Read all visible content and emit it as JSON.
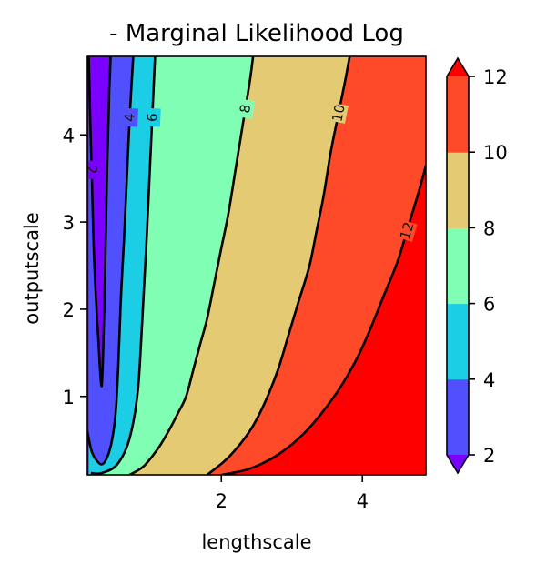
{
  "chart_data": {
    "type": "contour",
    "title": "- Marginal Likelihood Log",
    "xlabel": "lengthscale",
    "ylabel": "outputscale",
    "xlim": [
      0.1,
      4.9
    ],
    "ylim": [
      0.1,
      4.9
    ],
    "x_ticks": [
      2,
      4
    ],
    "y_ticks": [
      1,
      2,
      3,
      4
    ],
    "levels": [
      2,
      4,
      6,
      8,
      10,
      12
    ],
    "contour_labels": [
      "2",
      "4",
      "6",
      "8",
      "10",
      "12"
    ],
    "band_colors": [
      "#7a00ff",
      "#5050ff",
      "#1ccde6",
      "#80ffb4",
      "#e4cb73",
      "#ff4a2a",
      "#ff0000"
    ],
    "line_color": "#000000",
    "colorbar": {
      "ticks": [
        2,
        4,
        6,
        8,
        10,
        12
      ],
      "extend": "both",
      "under_color": "#7a00ff",
      "over_color": "#ff0000",
      "band_colors": [
        "#5050ff",
        "#1ccde6",
        "#80ffb4",
        "#e4cb73",
        "#ff4a2a"
      ]
    },
    "contours": [
      {
        "level": 2,
        "x": [
          0.12,
          0.14,
          0.16,
          0.18,
          0.2,
          0.23,
          0.26,
          0.28,
          0.3,
          0.31,
          0.32,
          0.33,
          0.34,
          0.35,
          0.36,
          0.37,
          0.38,
          0.39,
          0.4,
          0.41,
          0.42,
          0.43
        ],
        "y": [
          4.9,
          4.2,
          3.6,
          3.0,
          2.5,
          2.0,
          1.6,
          1.3,
          1.12,
          1.2,
          1.4,
          1.7,
          2.0,
          2.4,
          2.8,
          3.2,
          3.6,
          3.9,
          4.2,
          4.5,
          4.7,
          4.9
        ]
      },
      {
        "level": 4,
        "x": [
          0.1,
          0.15,
          0.2,
          0.3,
          0.38,
          0.45,
          0.5,
          0.53,
          0.55,
          0.58,
          0.62,
          0.66,
          0.7,
          0.75
        ],
        "y": [
          0.6,
          0.4,
          0.3,
          0.22,
          0.3,
          0.5,
          0.8,
          1.2,
          1.6,
          2.2,
          2.8,
          3.5,
          4.2,
          4.9
        ]
      },
      {
        "level": 6,
        "x": [
          0.15,
          0.3,
          0.5,
          0.65,
          0.75,
          0.82,
          0.86,
          0.9,
          0.94,
          0.98,
          1.02,
          1.06
        ],
        "y": [
          0.12,
          0.12,
          0.2,
          0.4,
          0.7,
          1.1,
          1.6,
          2.2,
          2.8,
          3.5,
          4.2,
          4.9
        ]
      },
      {
        "level": 8,
        "x": [
          0.7,
          0.9,
          1.1,
          1.25,
          1.38,
          1.5,
          1.6,
          1.7,
          1.8,
          1.9,
          2.0,
          2.1,
          2.2,
          2.3,
          2.4,
          2.45
        ],
        "y": [
          0.1,
          0.2,
          0.4,
          0.6,
          0.8,
          1.0,
          1.3,
          1.6,
          1.9,
          2.3,
          2.7,
          3.1,
          3.6,
          4.1,
          4.6,
          4.9
        ]
      },
      {
        "level": 10,
        "x": [
          1.8,
          2.1,
          2.4,
          2.6,
          2.8,
          2.95,
          3.1,
          3.25,
          3.35,
          3.45,
          3.55,
          3.65,
          3.75,
          3.82
        ],
        "y": [
          0.1,
          0.3,
          0.6,
          0.9,
          1.3,
          1.7,
          2.1,
          2.5,
          2.9,
          3.3,
          3.8,
          4.2,
          4.6,
          4.9
        ]
      },
      {
        "level": 12,
        "x": [
          2.0,
          2.4,
          2.8,
          3.2,
          3.6,
          3.9,
          4.1,
          4.3,
          4.5,
          4.65,
          4.8,
          4.9
        ],
        "y": [
          0.1,
          0.17,
          0.33,
          0.6,
          1.0,
          1.4,
          1.75,
          2.15,
          2.55,
          2.95,
          3.35,
          3.65
        ]
      }
    ]
  }
}
